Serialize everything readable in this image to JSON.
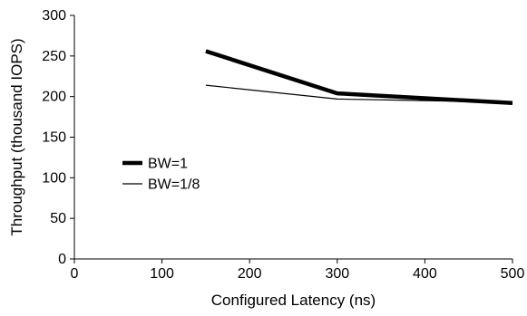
{
  "chart_data": {
    "type": "line",
    "title": "",
    "xlabel": "Configured Latency (ns)",
    "ylabel": "Throughput (thousand IOPS)",
    "xlim": [
      0,
      500
    ],
    "ylim": [
      0,
      300
    ],
    "xticks": [
      0,
      100,
      200,
      300,
      400,
      500
    ],
    "yticks": [
      0,
      50,
      100,
      150,
      200,
      250,
      300
    ],
    "grid": false,
    "legend_position": "left",
    "series": [
      {
        "name": "BW=1",
        "color": "#000000",
        "style": "thick",
        "x": [
          150,
          300,
          500
        ],
        "y": [
          256,
          204,
          192
        ]
      },
      {
        "name": "BW=1/8",
        "color": "#000000",
        "style": "thin",
        "x": [
          150,
          300,
          500
        ],
        "y": [
          214,
          197,
          193
        ]
      }
    ]
  }
}
